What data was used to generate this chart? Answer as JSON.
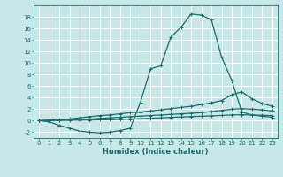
{
  "xlabel": "Humidex (Indice chaleur)",
  "bg_color": "#c8e8e8",
  "grid_color": "#ffffff",
  "line_color": "#1a6b6b",
  "x_values": [
    0,
    1,
    2,
    3,
    4,
    5,
    6,
    7,
    8,
    9,
    10,
    11,
    12,
    13,
    14,
    15,
    16,
    17,
    18,
    19,
    20,
    21,
    22,
    23
  ],
  "series": [
    [
      0.0,
      -0.2,
      -0.8,
      -1.3,
      -1.8,
      -2.0,
      -2.1,
      -2.0,
      -1.7,
      -1.3,
      3.2,
      9.0,
      9.5,
      14.5,
      16.2,
      18.5,
      18.3,
      17.5,
      11.0,
      7.0,
      1.5,
      1.0,
      0.8,
      0.6
    ],
    [
      0.0,
      0.1,
      0.2,
      0.3,
      0.5,
      0.7,
      0.9,
      1.0,
      1.2,
      1.4,
      1.5,
      1.7,
      1.9,
      2.1,
      2.3,
      2.5,
      2.8,
      3.1,
      3.5,
      4.5,
      5.0,
      3.8,
      3.0,
      2.5
    ],
    [
      0.0,
      0.05,
      0.1,
      0.15,
      0.2,
      0.3,
      0.4,
      0.5,
      0.6,
      0.7,
      0.8,
      0.9,
      1.0,
      1.1,
      1.2,
      1.3,
      1.4,
      1.6,
      1.8,
      2.0,
      2.1,
      2.0,
      1.9,
      1.7
    ],
    [
      0.0,
      0.02,
      0.05,
      0.07,
      0.1,
      0.12,
      0.15,
      0.18,
      0.22,
      0.28,
      0.35,
      0.42,
      0.5,
      0.58,
      0.65,
      0.72,
      0.78,
      0.85,
      0.92,
      1.0,
      1.05,
      1.0,
      0.95,
      0.9
    ]
  ],
  "ylim": [
    -3,
    20
  ],
  "xlim": [
    -0.5,
    23.5
  ],
  "yticks": [
    -2,
    0,
    2,
    4,
    6,
    8,
    10,
    12,
    14,
    16,
    18
  ],
  "xticks": [
    0,
    1,
    2,
    3,
    4,
    5,
    6,
    7,
    8,
    9,
    10,
    11,
    12,
    13,
    14,
    15,
    16,
    17,
    18,
    19,
    20,
    21,
    22,
    23
  ],
  "marker": "+",
  "markersize": 3.5,
  "linewidth": 0.9,
  "tick_fontsize": 5.0,
  "xlabel_fontsize": 6.0
}
